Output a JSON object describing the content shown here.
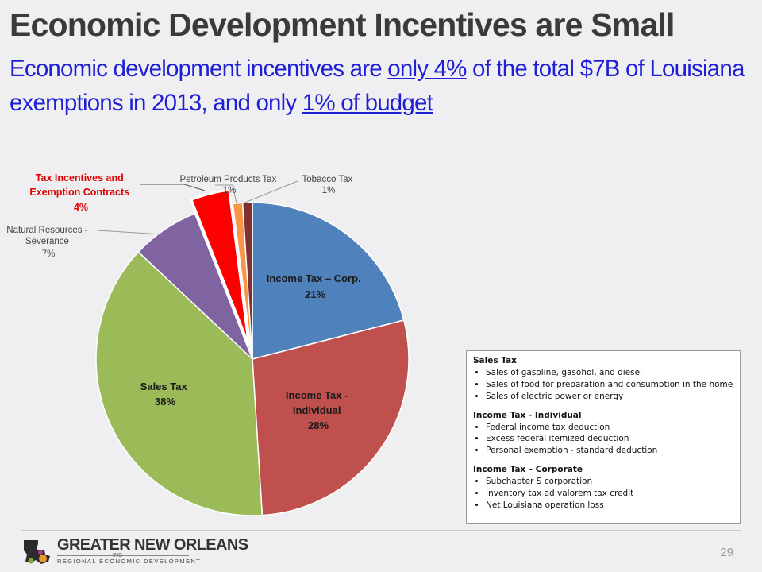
{
  "header": {
    "title": "Economic Development Incentives are Small",
    "subtitle": {
      "part1": "Economic development incentives are ",
      "link1": "only 4%",
      "part2": " of the total $7B of Louisiana exemptions in 2013, and only ",
      "link2": "1% of budget"
    }
  },
  "chart_data": {
    "type": "pie",
    "categories": [
      "Income Tax – Corp.",
      "Income Tax - Individual",
      "Sales Tax",
      "Natural Resources - Severance",
      "Tax Incentives and Exemption Contracts",
      "Petroleum Products Tax",
      "Tobacco Tax"
    ],
    "values": [
      21,
      28,
      38,
      7,
      4,
      1,
      1
    ],
    "value_labels": [
      "21%",
      "28%",
      "38%",
      "7%",
      "4%",
      "1%",
      "1%"
    ],
    "colors": [
      "#4f81bd",
      "#c0504d",
      "#9bbb59",
      "#8064a2",
      "#ff0000",
      "#f79646",
      "#7f3030"
    ],
    "highlight": "Tax Incentives and Exemption Contracts",
    "label_lines": {
      "corp": [
        "Income Tax – Corp.",
        "21%"
      ],
      "indiv": [
        "Income Tax -",
        "Individual",
        "28%"
      ],
      "sales": [
        "Sales Tax",
        "38%"
      ],
      "natres": [
        "Natural Resources -",
        "Severance",
        "7%"
      ],
      "incent": [
        "Tax Incentives and",
        "Exemption Contracts",
        "4%"
      ],
      "petro": [
        "Petroleum Products Tax",
        "1%"
      ],
      "tobacco": [
        "Tobacco Tax",
        "1%"
      ]
    }
  },
  "exemptions_box": {
    "sections": [
      {
        "title": "Sales Tax",
        "items": [
          "Sales of gasoline, gasohol, and diesel",
          "Sales of food for preparation and consumption in the home",
          "Sales of electric power or energy"
        ]
      },
      {
        "title": "Income Tax - Individual",
        "items": [
          "Federal income tax deduction",
          "Excess federal itemized deduction",
          "Personal exemption - standard deduction"
        ]
      },
      {
        "title": "Income Tax – Corporate",
        "items": [
          "Subchapter S corporation",
          "Inventory tax ad valorem tax credit",
          "Net Louisiana operation loss"
        ]
      }
    ]
  },
  "footer": {
    "logo_line1": "GREATER NEW ORLEANS",
    "logo_inc": "INC",
    "logo_line2": "REGIONAL ECONOMIC DEVELOPMENT",
    "page_number": "29"
  }
}
